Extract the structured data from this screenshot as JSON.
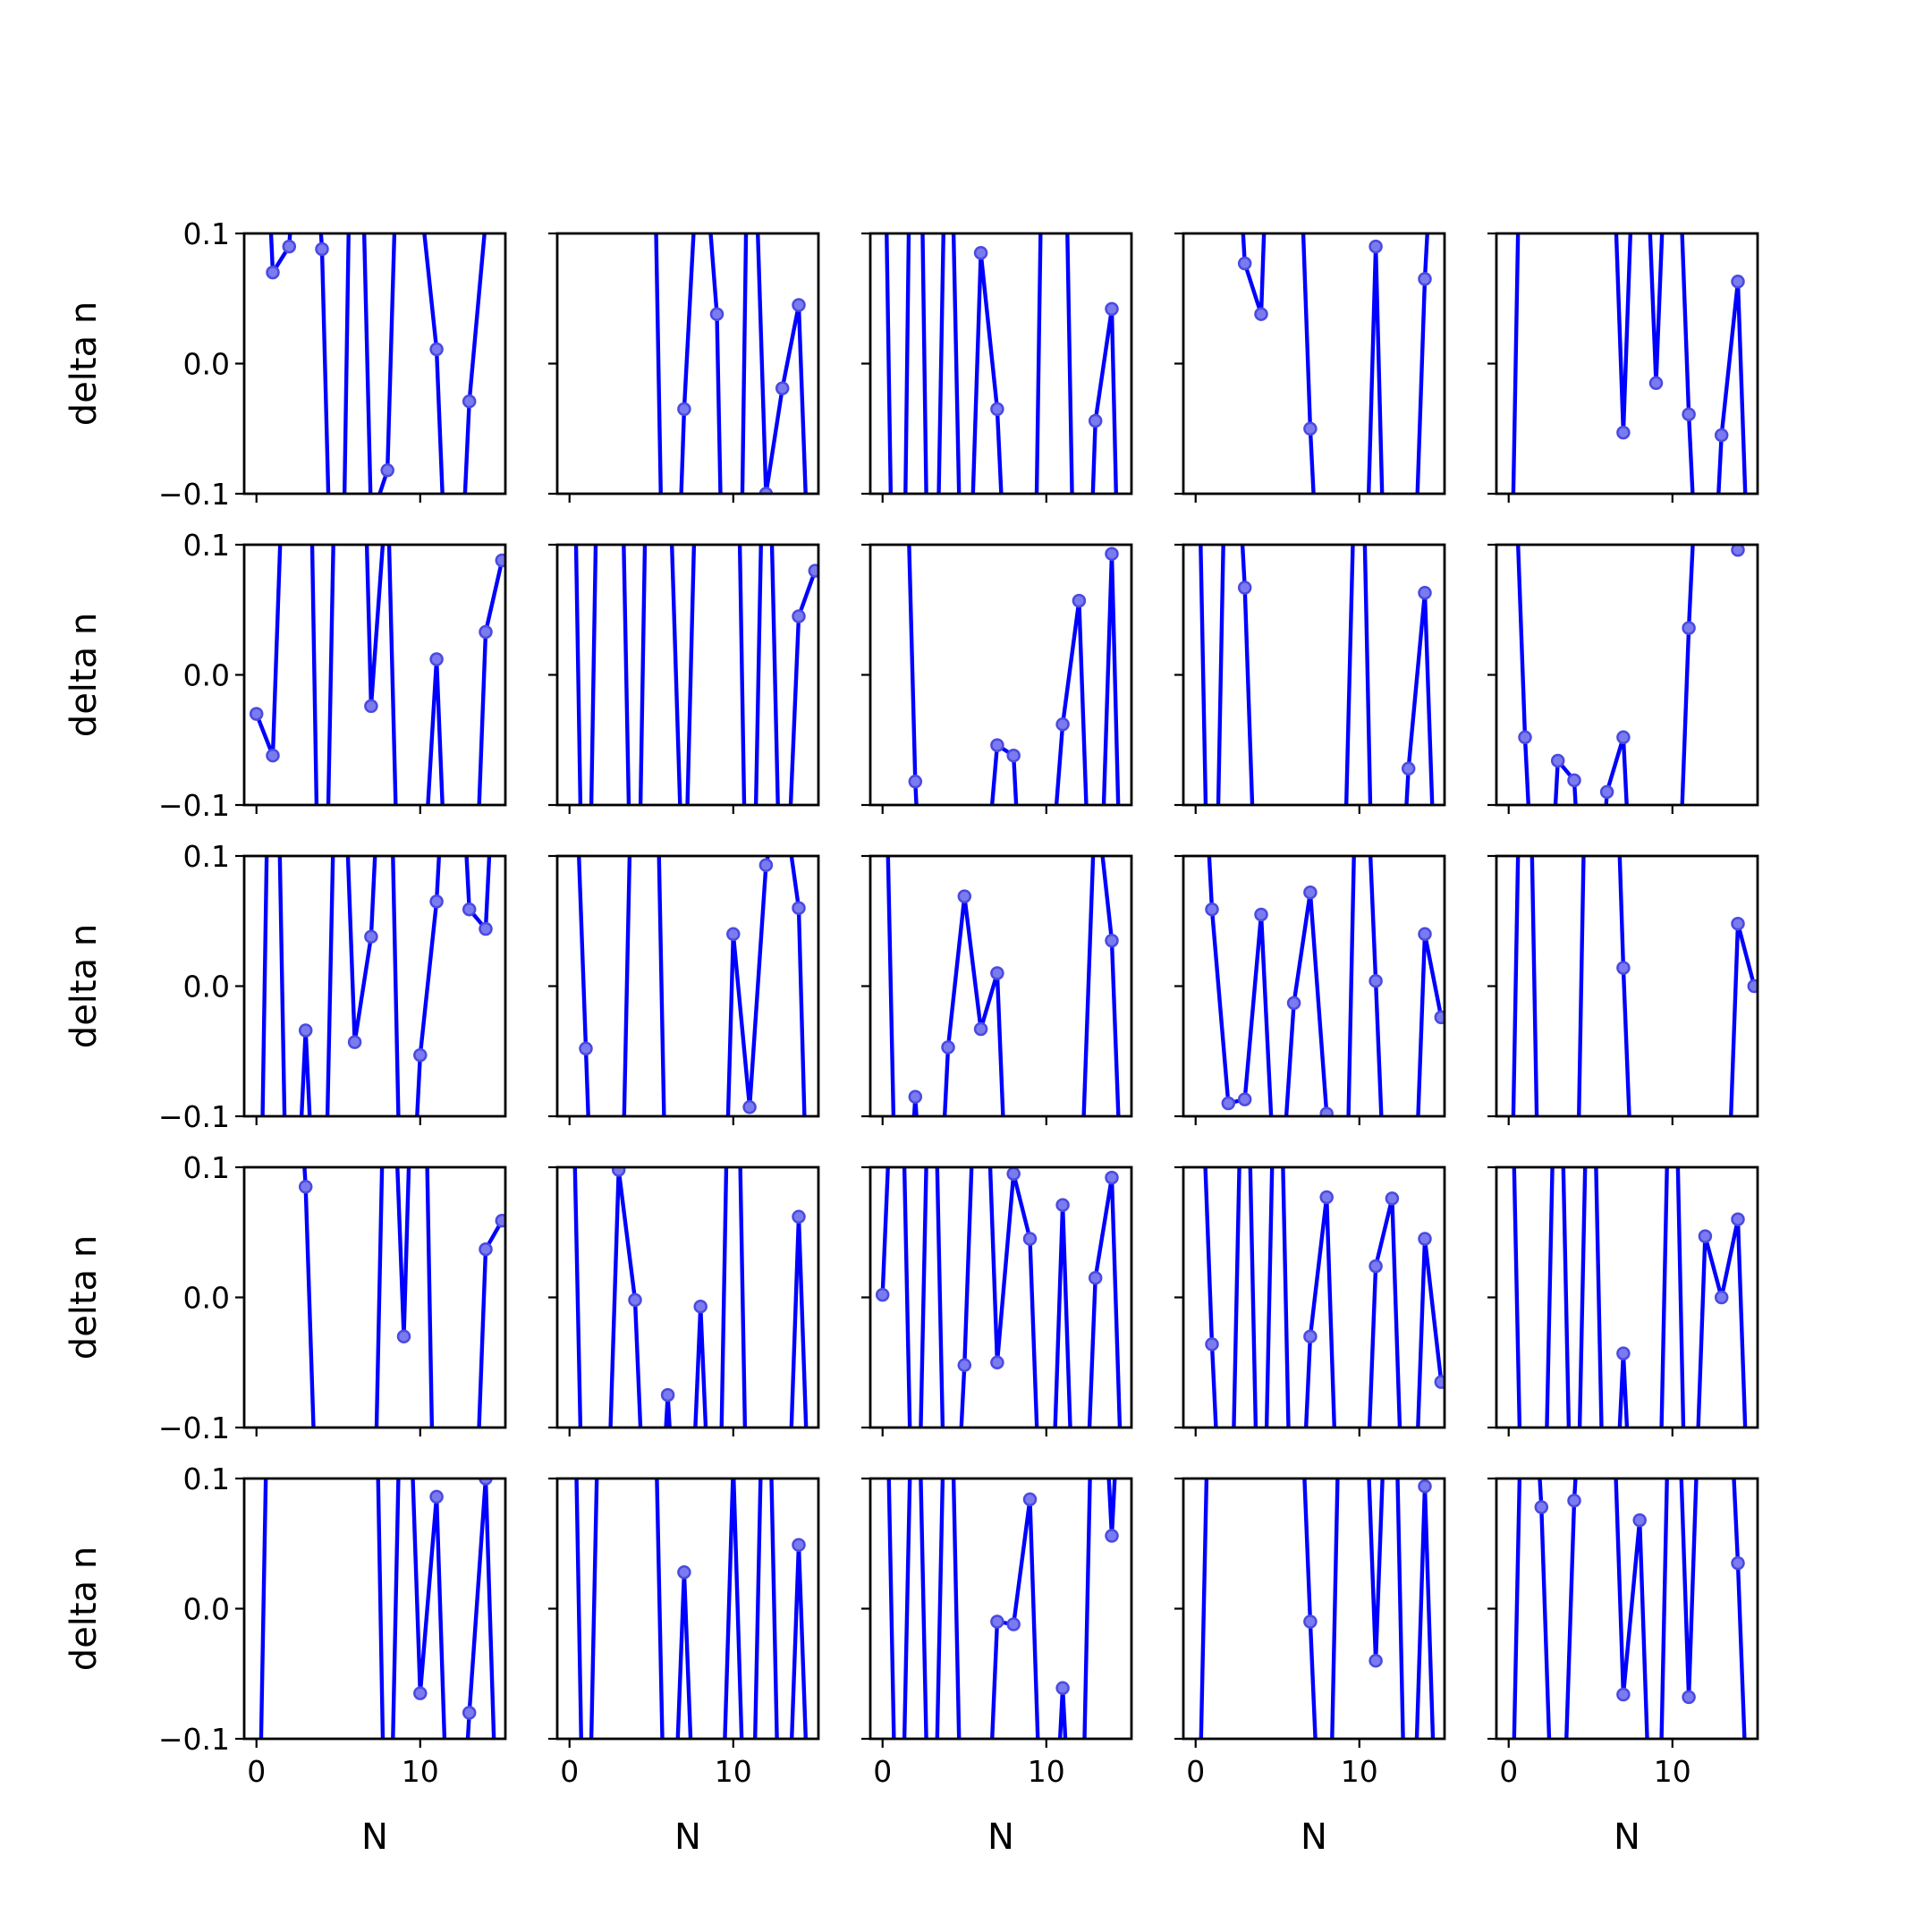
{
  "chart_data": {
    "type": "line",
    "layout": {
      "rows": 5,
      "cols": 5
    },
    "xlabel": "N",
    "ylabel": "delta n",
    "xlim": [
      -0.75,
      15.2
    ],
    "ylim": [
      -0.1,
      0.1
    ],
    "xticks": [
      0,
      10
    ],
    "xtick_labels": [
      "0",
      "10"
    ],
    "yticks": [
      -0.1,
      0.0,
      0.1
    ],
    "ytick_labels": [
      "−0.1",
      "0.0",
      "0.1"
    ],
    "sharex": true,
    "sharey": true,
    "grid": false,
    "colors": {
      "line": "#0000ff",
      "marker_fill": "#7b7bf0",
      "marker_edge": "#4a4ae0",
      "frame": "#000000"
    },
    "x": [
      0,
      1,
      2,
      3,
      4,
      5,
      6,
      7,
      8,
      9,
      10,
      11,
      12,
      13,
      14,
      15
    ],
    "panels": [
      [
        0.35,
        0.07,
        0.09,
        0.28,
        0.088,
        -0.4,
        0.4,
        -0.12,
        -0.082,
        0.35,
        0.13,
        0.011,
        -0.3,
        -0.029,
        0.11,
        0.3
      ],
      [
        0.3,
        0.4,
        0.35,
        0.4,
        0.3,
        0.3,
        -0.4,
        -0.035,
        0.2,
        0.038,
        -0.6,
        0.3,
        -0.1,
        -0.019,
        0.045,
        -0.3
      ],
      [
        0.3,
        -0.5,
        0.5,
        -0.4,
        0.3,
        -0.3,
        0.085,
        -0.035,
        -0.3,
        -0.45,
        0.4,
        0.3,
        -0.4,
        -0.044,
        0.042,
        -0.5
      ],
      [
        0.3,
        0.4,
        0.3,
        0.077,
        0.038,
        0.4,
        0.3,
        -0.05,
        -0.3,
        -0.3,
        -0.35,
        0.09,
        -0.4,
        -0.3,
        0.065,
        0.3
      ],
      [
        -0.3,
        0.4,
        0.35,
        0.3,
        0.4,
        0.4,
        0.3,
        -0.053,
        0.3,
        -0.015,
        0.3,
        -0.039,
        -0.3,
        -0.055,
        0.063,
        -0.3
      ],
      [
        -0.03,
        -0.062,
        0.3,
        0.4,
        -0.35,
        0.3,
        0.45,
        -0.024,
        0.15,
        -0.35,
        -0.2,
        0.012,
        -0.3,
        -0.3,
        0.033,
        0.088
      ],
      [
        0.4,
        -0.35,
        0.4,
        0.3,
        -0.35,
        0.4,
        0.2,
        -0.2,
        0.3,
        0.3,
        0.4,
        -0.35,
        0.3,
        -0.25,
        0.045,
        0.08
      ],
      [
        0.35,
        0.4,
        -0.082,
        -0.35,
        -0.2,
        -0.3,
        -0.2,
        -0.054,
        -0.062,
        -0.3,
        -0.2,
        -0.038,
        0.057,
        -0.3,
        0.093,
        -0.4
      ],
      [
        0.3,
        -0.35,
        0.3,
        0.067,
        -0.3,
        -0.3,
        -0.3,
        -0.3,
        -0.3,
        -0.2,
        0.3,
        -0.3,
        -0.3,
        -0.072,
        0.063,
        -0.3
      ],
      [
        0.3,
        -0.048,
        -0.3,
        -0.066,
        -0.081,
        -0.3,
        -0.09,
        -0.048,
        -0.3,
        -0.3,
        -0.3,
        0.036,
        0.3,
        0.3,
        0.096,
        0.3
      ],
      [
        -0.4,
        0.4,
        -0.3,
        -0.034,
        -0.3,
        0.3,
        -0.043,
        0.038,
        0.3,
        -0.3,
        -0.053,
        0.065,
        0.3,
        0.059,
        0.044,
        0.3
      ],
      [
        0.3,
        -0.048,
        -0.4,
        -0.3,
        0.3,
        0.4,
        -0.25,
        -0.3,
        -0.3,
        -0.4,
        0.04,
        -0.093,
        0.093,
        0.15,
        0.06,
        -0.4
      ],
      [
        0.3,
        -0.3,
        -0.085,
        -0.3,
        -0.047,
        0.069,
        -0.033,
        0.01,
        -0.3,
        -0.3,
        -0.3,
        -0.3,
        -0.2,
        0.15,
        0.035,
        -0.3
      ],
      [
        0.3,
        0.059,
        -0.09,
        -0.087,
        0.055,
        -0.2,
        -0.013,
        0.072,
        -0.098,
        -0.3,
        0.3,
        0.004,
        -0.3,
        -0.3,
        0.04,
        -0.024
      ],
      [
        -0.3,
        0.4,
        -0.3,
        -0.3,
        -0.3,
        0.4,
        0.4,
        0.014,
        -0.3,
        -0.3,
        -0.3,
        -0.3,
        -0.3,
        -0.3,
        0.048,
        0.0
      ],
      [
        0.4,
        0.3,
        0.3,
        0.085,
        -0.3,
        -0.3,
        -0.3,
        -0.3,
        0.3,
        -0.03,
        0.4,
        -0.3,
        -0.3,
        -0.3,
        0.037,
        0.059
      ],
      [
        0.3,
        -0.3,
        -0.3,
        0.098,
        -0.002,
        -0.3,
        -0.075,
        -0.3,
        -0.007,
        -0.3,
        0.4,
        -0.3,
        -0.3,
        -0.3,
        0.062,
        -0.3
      ],
      [
        0.002,
        0.3,
        -0.3,
        0.3,
        -0.3,
        -0.052,
        0.3,
        -0.05,
        0.095,
        0.045,
        -0.3,
        0.071,
        -0.3,
        0.015,
        0.092,
        -0.3
      ],
      [
        0.3,
        -0.036,
        -0.3,
        0.3,
        -0.3,
        0.3,
        -0.3,
        -0.03,
        0.077,
        -0.3,
        -0.3,
        0.024,
        0.076,
        -0.3,
        0.045,
        -0.065
      ],
      [
        0.3,
        -0.3,
        -0.3,
        0.3,
        -0.3,
        0.3,
        -0.3,
        -0.043,
        -0.3,
        -0.3,
        0.3,
        -0.3,
        0.047,
        0.0,
        0.06,
        -0.3
      ],
      [
        -0.3,
        0.4,
        0.3,
        0.3,
        0.4,
        0.4,
        0.3,
        0.4,
        -0.3,
        0.3,
        -0.065,
        0.086,
        -0.3,
        -0.08,
        0.1,
        -0.3
      ],
      [
        0.4,
        -0.3,
        0.3,
        0.3,
        0.3,
        0.3,
        -0.3,
        0.028,
        -0.3,
        -0.3,
        0.11,
        -0.3,
        0.3,
        -0.3,
        0.049,
        -0.3
      ],
      [
        0.35,
        -0.3,
        0.3,
        -0.3,
        0.3,
        -0.3,
        -0.3,
        -0.01,
        -0.012,
        0.084,
        -0.3,
        -0.061,
        -0.3,
        0.3,
        0.056,
        0.3
      ],
      [
        -0.3,
        0.3,
        0.3,
        0.3,
        0.3,
        0.3,
        0.3,
        -0.01,
        -0.3,
        0.3,
        0.3,
        -0.04,
        0.3,
        -0.3,
        0.094,
        -0.3
      ],
      [
        -0.3,
        0.3,
        0.078,
        -0.3,
        0.083,
        0.3,
        0.3,
        -0.066,
        0.068,
        -0.3,
        0.3,
        -0.068,
        0.3,
        0.3,
        0.035,
        -0.3
      ]
    ]
  }
}
